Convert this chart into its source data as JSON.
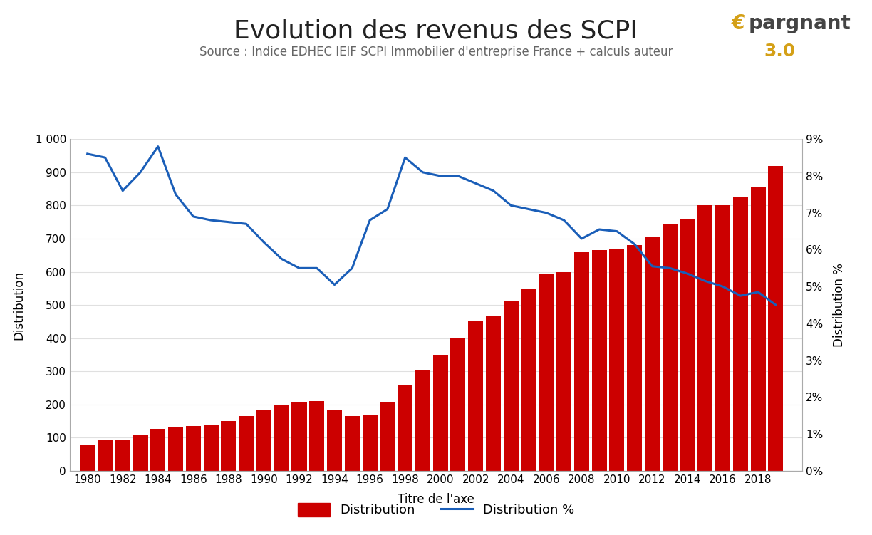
{
  "title": "Evolution des revenus des SCPI",
  "subtitle": "Source : Indice EDHEC IEIF SCPI Immobilier d'entreprise France + calculs auteur",
  "xlabel": "Titre de l'axe",
  "ylabel_left": "Distribution",
  "ylabel_right": "Distribution %",
  "years": [
    1980,
    1981,
    1982,
    1983,
    1984,
    1985,
    1986,
    1987,
    1988,
    1989,
    1990,
    1991,
    1992,
    1993,
    1994,
    1995,
    1996,
    1997,
    1998,
    1999,
    2000,
    2001,
    2002,
    2003,
    2004,
    2005,
    2006,
    2007,
    2008,
    2009,
    2010,
    2011,
    2012,
    2013,
    2014,
    2015,
    2016,
    2017,
    2018,
    2019
  ],
  "distribution": [
    78,
    92,
    95,
    108,
    127,
    133,
    135,
    140,
    150,
    165,
    185,
    200,
    208,
    210,
    183,
    165,
    170,
    205,
    260,
    305,
    350,
    400,
    450,
    465,
    510,
    550,
    595,
    600,
    660,
    665,
    670,
    680,
    705,
    745,
    760,
    800,
    800,
    825,
    855,
    920
  ],
  "distribution_pct": [
    8.6,
    8.5,
    7.6,
    8.1,
    8.8,
    7.5,
    6.9,
    6.8,
    6.75,
    6.7,
    6.2,
    5.75,
    5.5,
    5.5,
    5.05,
    5.5,
    6.8,
    7.1,
    8.5,
    8.1,
    8.0,
    8.0,
    7.8,
    7.6,
    7.2,
    7.1,
    7.0,
    6.8,
    6.3,
    6.55,
    6.5,
    6.15,
    5.55,
    5.5,
    5.35,
    5.15,
    5.0,
    4.75,
    4.85,
    4.5
  ],
  "bar_color": "#cc0000",
  "line_color": "#1a5eb8",
  "background_color": "#ffffff",
  "ylim_left": [
    0,
    1000
  ],
  "ylim_right": [
    0,
    9
  ],
  "yticks_left": [
    0,
    100,
    200,
    300,
    400,
    500,
    600,
    700,
    800,
    900,
    1000
  ],
  "yticks_right": [
    0,
    1,
    2,
    3,
    4,
    5,
    6,
    7,
    8,
    9
  ],
  "ytick_labels_left": [
    "0",
    "100",
    "200",
    "300",
    "400",
    "500",
    "600",
    "700",
    "800",
    "900",
    "1 000"
  ],
  "ytick_labels_right": [
    "0%",
    "1%",
    "2%",
    "3%",
    "4%",
    "5%",
    "6%",
    "7%",
    "8%",
    "9%"
  ],
  "xticks": [
    1980,
    1982,
    1984,
    1986,
    1988,
    1990,
    1992,
    1994,
    1996,
    1998,
    2000,
    2002,
    2004,
    2006,
    2008,
    2010,
    2012,
    2014,
    2016,
    2018
  ],
  "logo_color_e": "#d4a017",
  "logo_color_text": "#444444",
  "logo_color_30": "#d4a017",
  "legend_labels": [
    "Distribution",
    "Distribution %"
  ],
  "title_fontsize": 26,
  "subtitle_fontsize": 12,
  "axis_label_fontsize": 12,
  "tick_fontsize": 11
}
